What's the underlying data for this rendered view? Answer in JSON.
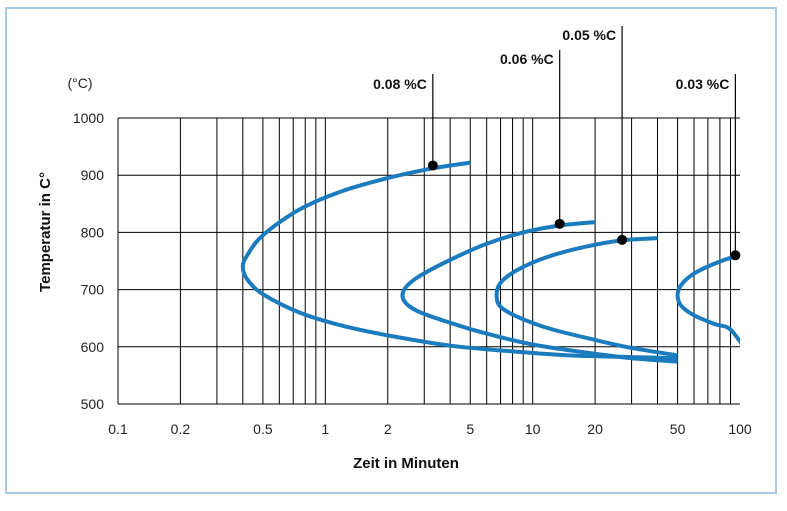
{
  "chart_data": {
    "type": "line",
    "title": "",
    "xlabel": "Zeit in Minuten",
    "ylabel": "Temperatur in C°",
    "y_unit": "(°C)",
    "x_scale": "log",
    "xlim": [
      0.1,
      100
    ],
    "ylim": [
      500,
      1000
    ],
    "grid": true,
    "x_ticks": [
      0.1,
      0.2,
      0.5,
      1,
      2,
      5,
      10,
      20,
      50,
      100
    ],
    "x_tick_labels": [
      "0.1",
      "0.2",
      "0.5",
      "1",
      "2",
      "5",
      "10",
      "20",
      "50",
      "100"
    ],
    "y_ticks": [
      500,
      600,
      700,
      800,
      900,
      1000
    ],
    "y_tick_labels": [
      "500",
      "600",
      "700",
      "800",
      "900",
      "1000"
    ],
    "line_color": "#1b7bbf",
    "series": [
      {
        "name": "0.08 %C",
        "points": [
          [
            5,
            922
          ],
          [
            3.3,
            912
          ],
          [
            2,
            895
          ],
          [
            1.2,
            872
          ],
          [
            0.75,
            840
          ],
          [
            0.5,
            795
          ],
          [
            0.42,
            760
          ],
          [
            0.4,
            740
          ],
          [
            0.42,
            718
          ],
          [
            0.5,
            692
          ],
          [
            0.75,
            660
          ],
          [
            1.2,
            637
          ],
          [
            2,
            620
          ],
          [
            4,
            602
          ],
          [
            8,
            592
          ],
          [
            15,
            585
          ],
          [
            30,
            582
          ],
          [
            50,
            580
          ]
        ],
        "marker": {
          "x": 3.3,
          "y": 917
        }
      },
      {
        "name": "0.06 %C",
        "points": [
          [
            20,
            818
          ],
          [
            13.5,
            812
          ],
          [
            9,
            800
          ],
          [
            6,
            780
          ],
          [
            4,
            752
          ],
          [
            2.8,
            722
          ],
          [
            2.4,
            700
          ],
          [
            2.4,
            680
          ],
          [
            2.8,
            662
          ],
          [
            4,
            642
          ],
          [
            6,
            623
          ],
          [
            10,
            604
          ],
          [
            18,
            590
          ],
          [
            30,
            580
          ],
          [
            50,
            574
          ]
        ],
        "marker": {
          "x": 13.5,
          "y": 815
        }
      },
      {
        "name": "0.05 %C",
        "points": [
          [
            40,
            790
          ],
          [
            27,
            786
          ],
          [
            18,
            775
          ],
          [
            12,
            758
          ],
          [
            8.5,
            735
          ],
          [
            7,
            712
          ],
          [
            6.7,
            690
          ],
          [
            7,
            670
          ],
          [
            8.5,
            652
          ],
          [
            12,
            632
          ],
          [
            20,
            612
          ],
          [
            30,
            598
          ],
          [
            50,
            585
          ]
        ],
        "marker": {
          "x": 27,
          "y": 787
        }
      },
      {
        "name": "0.03 %C",
        "points": [
          [
            110,
            760
          ],
          [
            95,
            758
          ],
          [
            75,
            745
          ],
          [
            60,
            728
          ],
          [
            52,
            708
          ],
          [
            50,
            690
          ],
          [
            52,
            672
          ],
          [
            60,
            655
          ],
          [
            75,
            640
          ],
          [
            90,
            630
          ],
          [
            110,
            587
          ]
        ],
        "marker": {
          "x": 95,
          "y": 760
        }
      }
    ],
    "annotations": [
      {
        "label": "0.08 %C",
        "x": 3.3
      },
      {
        "label": "0.06 %C",
        "x": 13.5
      },
      {
        "label": "0.05 %C",
        "x": 27
      },
      {
        "label": "0.03 %C",
        "x": 95
      }
    ]
  }
}
